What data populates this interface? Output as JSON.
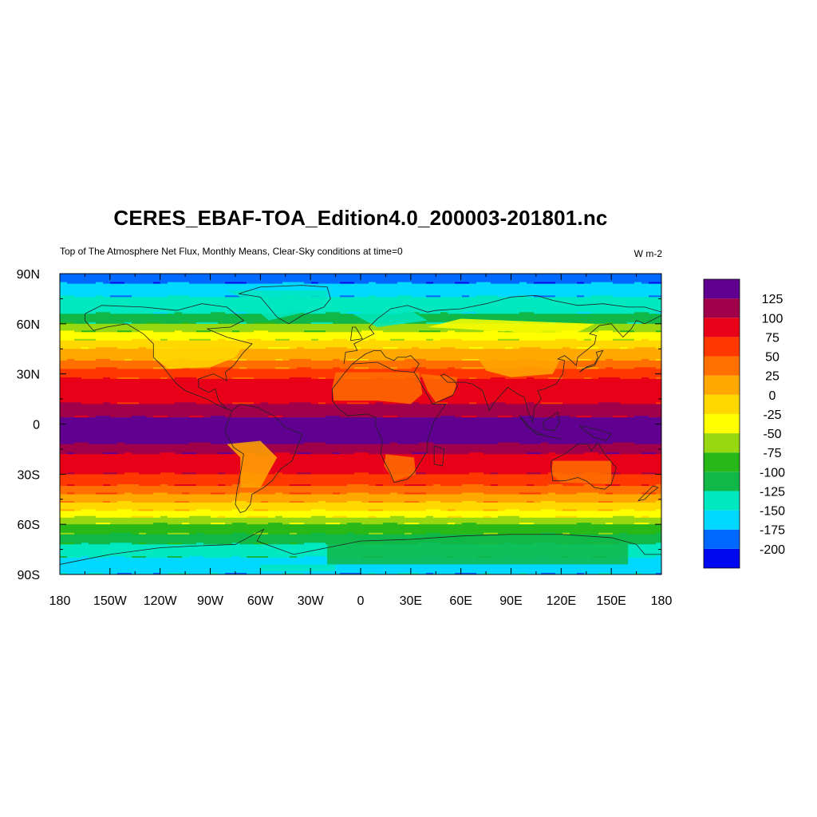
{
  "title": "CERES_EBAF-TOA_Edition4.0_200003-201801.nc",
  "subtitle": "Top of The Atmosphere Net Flux, Monthly Means, Clear-Sky conditions at time=0",
  "units": "W m-2",
  "map": {
    "projection": "cylindrical equidistant",
    "lon_range": [
      -180,
      180
    ],
    "lat_range": [
      -90,
      90
    ],
    "lat_tick_labels": [
      {
        "lat": 90,
        "label": "90N"
      },
      {
        "lat": 60,
        "label": "60N"
      },
      {
        "lat": 30,
        "label": "30N"
      },
      {
        "lat": 0,
        "label": "0"
      },
      {
        "lat": -30,
        "label": "30S"
      },
      {
        "lat": -60,
        "label": "60S"
      },
      {
        "lat": -90,
        "label": "90S"
      }
    ],
    "lon_tick_labels": [
      {
        "lon": -180,
        "label": "180"
      },
      {
        "lon": -150,
        "label": "150W"
      },
      {
        "lon": -120,
        "label": "120W"
      },
      {
        "lon": -90,
        "label": "90W"
      },
      {
        "lon": -60,
        "label": "60W"
      },
      {
        "lon": -30,
        "label": "30W"
      },
      {
        "lon": 0,
        "label": "0"
      },
      {
        "lon": 30,
        "label": "30E"
      },
      {
        "lon": 60,
        "label": "60E"
      },
      {
        "lon": 90,
        "label": "90E"
      },
      {
        "lon": 120,
        "label": "120E"
      },
      {
        "lon": 150,
        "label": "150E"
      },
      {
        "lon": 180,
        "label": "180"
      }
    ],
    "zonal_band_values": [
      {
        "lat_from": 90,
        "lat_to": 84,
        "value": -190
      },
      {
        "lat_from": 84,
        "lat_to": 76,
        "value": -165
      },
      {
        "lat_from": 76,
        "lat_to": 66,
        "value": -140
      },
      {
        "lat_from": 66,
        "lat_to": 60,
        "value": -110
      },
      {
        "lat_from": 60,
        "lat_to": 55,
        "value": -65
      },
      {
        "lat_from": 55,
        "lat_to": 50,
        "value": -40
      },
      {
        "lat_from": 50,
        "lat_to": 45,
        "value": -15
      },
      {
        "lat_from": 45,
        "lat_to": 38,
        "value": 10
      },
      {
        "lat_from": 38,
        "lat_to": 33,
        "value": 35
      },
      {
        "lat_from": 33,
        "lat_to": 27,
        "value": 60
      },
      {
        "lat_from": 27,
        "lat_to": 12,
        "value": 85
      },
      {
        "lat_from": 12,
        "lat_to": 4,
        "value": 105
      },
      {
        "lat_from": 4,
        "lat_to": -12,
        "value": 130
      },
      {
        "lat_from": -12,
        "lat_to": -18,
        "value": 110
      },
      {
        "lat_from": -18,
        "lat_to": -30,
        "value": 85
      },
      {
        "lat_from": -30,
        "lat_to": -37,
        "value": 60
      },
      {
        "lat_from": -37,
        "lat_to": -42,
        "value": 35
      },
      {
        "lat_from": -42,
        "lat_to": -47,
        "value": 10
      },
      {
        "lat_from": -47,
        "lat_to": -52,
        "value": -15
      },
      {
        "lat_from": -52,
        "lat_to": -56,
        "value": -40
      },
      {
        "lat_from": -56,
        "lat_to": -60,
        "value": -65
      },
      {
        "lat_from": -60,
        "lat_to": -66,
        "value": -90
      },
      {
        "lat_from": -66,
        "lat_to": -72,
        "value": -115
      },
      {
        "lat_from": -72,
        "lat_to": -80,
        "value": -140
      },
      {
        "lat_from": -80,
        "lat_to": -90,
        "value": -165
      }
    ]
  },
  "colorbar": {
    "levels": [
      -200,
      -175,
      -150,
      -125,
      -100,
      -75,
      -50,
      -25,
      0,
      25,
      50,
      75,
      100,
      125
    ],
    "labels": [
      "125",
      "100",
      "75",
      "50",
      "25",
      "0",
      "-25",
      "-50",
      "-75",
      "-100",
      "-125",
      "-150",
      "-175",
      "-200"
    ],
    "colors_bottom_to_top": [
      "#0008F0",
      "#0068FF",
      "#00D8FF",
      "#00E8C0",
      "#10B848",
      "#28B818",
      "#98D810",
      "#FFFF00",
      "#FFD800",
      "#FFA800",
      "#FF7000",
      "#FF3800",
      "#E80018",
      "#A0004A",
      "#600090"
    ]
  }
}
